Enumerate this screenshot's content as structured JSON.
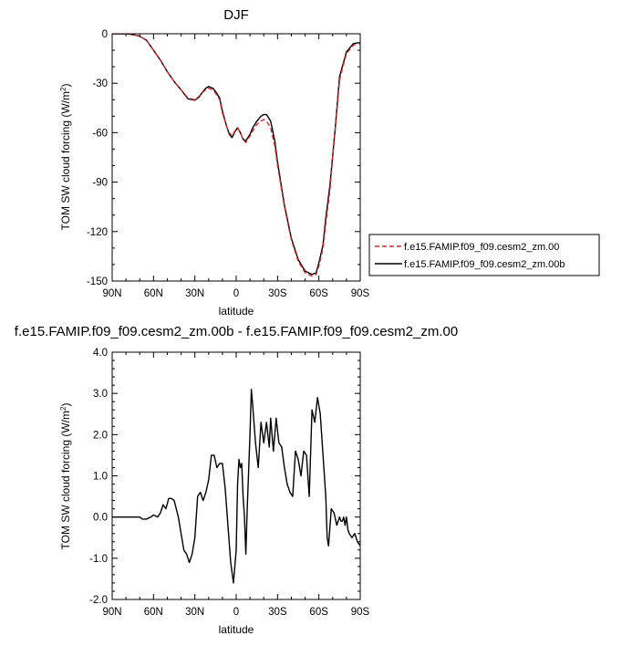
{
  "chart_data": [
    {
      "type": "line",
      "title": "DJF",
      "xlabel": "latitude",
      "ylabel": "TOM SW cloud forcing (W/m",
      "ylabel_sup": "2",
      "ylabel_close": ")",
      "xlim": [
        90,
        -90
      ],
      "ylim": [
        -150,
        0
      ],
      "xticks": [
        90,
        60,
        30,
        0,
        -30,
        -60,
        -90
      ],
      "xtick_labels": [
        "90N",
        "60N",
        "30N",
        "0",
        "30S",
        "60S",
        "90S"
      ],
      "yticks": [
        0,
        -30,
        -60,
        -90,
        -120,
        -150
      ],
      "ytick_labels": [
        "0",
        "-30",
        "-60",
        "-90",
        "-120",
        "-150"
      ],
      "legend_position": "right-outside",
      "grid": false,
      "series": [
        {
          "name": "f.e15.FAMIP.f09_f09.cesm2_zm.00",
          "color": "#d62728",
          "dash": "dashed",
          "x": [
            90,
            85,
            80,
            75,
            70,
            65,
            60,
            55,
            50,
            45,
            40,
            35,
            30,
            27,
            25,
            22,
            20,
            17,
            15,
            12,
            10,
            7,
            5,
            3,
            1,
            -1,
            -3,
            -5,
            -7,
            -10,
            -12,
            -15,
            -18,
            -20,
            -22,
            -25,
            -28,
            -30,
            -35,
            -40,
            -45,
            -50,
            -55,
            -58,
            -60,
            -63,
            -65,
            -68,
            -70,
            -72,
            -74,
            -75,
            -78,
            -80,
            -83,
            -85,
            -88,
            -90
          ],
          "y": [
            0,
            0,
            0,
            -0.5,
            -1.5,
            -4,
            -10,
            -16,
            -23,
            -29,
            -34,
            -39,
            -40,
            -38,
            -36,
            -34,
            -33,
            -34,
            -36,
            -40,
            -48,
            -56,
            -60,
            -62,
            -59,
            -57,
            -60,
            -64,
            -66,
            -62,
            -59,
            -55,
            -53,
            -52,
            -53,
            -57,
            -68,
            -80,
            -105,
            -125,
            -138,
            -145,
            -147,
            -146,
            -141,
            -130,
            -115,
            -95,
            -75,
            -57,
            -38,
            -28,
            -18,
            -12,
            -9,
            -7,
            -6,
            -6
          ]
        },
        {
          "name": "f.e15.FAMIP.f09_f09.cesm2_zm.00b",
          "color": "#000000",
          "dash": "solid",
          "x": [
            90,
            85,
            80,
            75,
            70,
            65,
            60,
            55,
            50,
            45,
            40,
            35,
            30,
            27,
            25,
            22,
            20,
            17,
            15,
            12,
            10,
            7,
            5,
            3,
            1,
            -1,
            -3,
            -5,
            -7,
            -10,
            -12,
            -15,
            -18,
            -20,
            -22,
            -25,
            -28,
            -30,
            -35,
            -40,
            -45,
            -50,
            -55,
            -58,
            -60,
            -63,
            -65,
            -68,
            -70,
            -72,
            -74,
            -75,
            -78,
            -80,
            -83,
            -85,
            -88,
            -90
          ],
          "y": [
            0,
            0,
            0,
            -0.5,
            -1.5,
            -4,
            -10,
            -16,
            -23,
            -29,
            -34,
            -39.5,
            -40.3,
            -38.5,
            -36,
            -33,
            -32,
            -33,
            -35,
            -39,
            -47,
            -56,
            -61,
            -63,
            -59.5,
            -57,
            -60,
            -64,
            -65,
            -61,
            -57,
            -53,
            -50,
            -49,
            -49,
            -53,
            -65,
            -78,
            -104,
            -124,
            -137,
            -144,
            -146,
            -145,
            -139,
            -128,
            -112,
            -92,
            -74,
            -56,
            -36,
            -26,
            -17,
            -11,
            -8,
            -6,
            -5.5,
            -5.5
          ]
        }
      ]
    },
    {
      "type": "line",
      "title": "f.e15.FAMIP.f09_f09.cesm2_zm.00b - f.e15.FAMIP.f09_f09.cesm2_zm.00",
      "xlabel": "latitude",
      "ylabel": "TOM SW cloud forcing (W/m",
      "ylabel_sup": "2",
      "ylabel_close": ")",
      "xlim": [
        90,
        -90
      ],
      "ylim": [
        -2,
        4
      ],
      "xticks": [
        90,
        60,
        30,
        0,
        -30,
        -60,
        -90
      ],
      "xtick_labels": [
        "90N",
        "60N",
        "30N",
        "0",
        "30S",
        "60S",
        "90S"
      ],
      "yticks": [
        4,
        3,
        2,
        1,
        0,
        -1,
        -2
      ],
      "ytick_labels": [
        "4.0",
        "3.0",
        "2.0",
        "1.0",
        "0.0",
        "-1.0",
        "-2.0"
      ],
      "grid": false,
      "series": [
        {
          "color": "#000000",
          "dash": "solid",
          "x": [
            90,
            80,
            75,
            70,
            68,
            65,
            62,
            60,
            57,
            55,
            53,
            51,
            49,
            47,
            45,
            42,
            40,
            38,
            36,
            34,
            32,
            30,
            28,
            26,
            24,
            22,
            20,
            18,
            16,
            14,
            12,
            10,
            8,
            6,
            4,
            2,
            0,
            -1,
            -2,
            -3,
            -4,
            -5,
            -6,
            -7,
            -8,
            -10,
            -11,
            -12,
            -14,
            -16,
            -18,
            -20,
            -22,
            -24,
            -25,
            -27,
            -29,
            -31,
            -33,
            -35,
            -37,
            -39,
            -41,
            -43,
            -45,
            -47,
            -49,
            -51,
            -53,
            -55,
            -57,
            -59,
            -61,
            -63,
            -65,
            -66,
            -67,
            -69,
            -71,
            -73,
            -75,
            -76,
            -77,
            -78,
            -79,
            -80,
            -81,
            -82,
            -84,
            -86,
            -88,
            -90
          ],
          "y": [
            0,
            0,
            0,
            0,
            -0.05,
            -0.05,
            0,
            0.05,
            0,
            0.1,
            0.3,
            0.2,
            0.45,
            0.45,
            0.4,
            0,
            -0.4,
            -0.8,
            -0.9,
            -1.1,
            -0.9,
            -0.5,
            0.5,
            0.6,
            0.4,
            0.6,
            0.9,
            1.5,
            1.5,
            1.2,
            1.3,
            1.3,
            0.7,
            -0.2,
            -1.1,
            -1.6,
            -0.8,
            0.8,
            1.4,
            1.2,
            1.3,
            0.5,
            0,
            -0.9,
            0.2,
            2.0,
            3.1,
            2.7,
            1.8,
            1.2,
            2.3,
            1.8,
            2.3,
            1.7,
            2.4,
            1.6,
            2.4,
            1.8,
            1.7,
            1.2,
            0.8,
            0.6,
            0.5,
            1.6,
            1.4,
            1.0,
            1.6,
            1.5,
            0.5,
            2.6,
            2.3,
            2.9,
            2.5,
            1.5,
            0.5,
            -0.5,
            -0.7,
            0.2,
            0.1,
            -0.2,
            0,
            -0.1,
            -0.1,
            0,
            -0.2,
            0,
            -0.3,
            -0.4,
            -0.5,
            -0.4,
            -0.6,
            -0.7
          ]
        }
      ]
    }
  ]
}
